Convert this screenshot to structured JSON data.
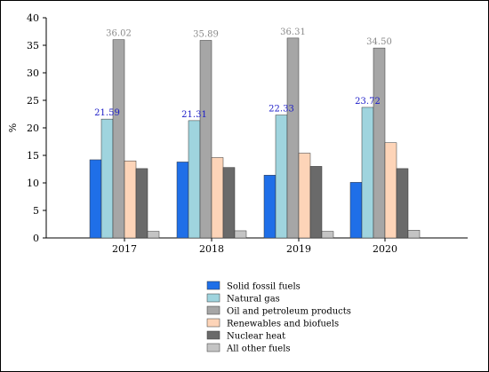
{
  "chart_data": {
    "type": "bar",
    "ylabel": "%",
    "ylim": [
      0,
      40
    ],
    "yticks": [
      0,
      5,
      10,
      15,
      20,
      25,
      30,
      35,
      40
    ],
    "categories": [
      "2017",
      "2018",
      "2019",
      "2020"
    ],
    "grid": false,
    "legend_position": "bottom-center",
    "series": [
      {
        "name": "Solid fossil fuels",
        "color": "#1f6fe8",
        "values": [
          14.2,
          13.8,
          11.4,
          10.1
        ]
      },
      {
        "name": "Natural gas",
        "color": "#9fd4de",
        "values": [
          21.59,
          21.31,
          22.33,
          23.72
        ],
        "labels": [
          "21.59",
          "21.31",
          "22.33",
          "23.72"
        ],
        "label_color": "#1c1cc8"
      },
      {
        "name": "Oil and petroleum products",
        "color": "#a6a6a6",
        "values": [
          36.02,
          35.89,
          36.31,
          34.5
        ],
        "labels": [
          "36.02",
          "35.89",
          "36.31",
          "34.50"
        ],
        "label_color": "#8a8a8a"
      },
      {
        "name": "Renewables and biofuels",
        "color": "#fdd4b8",
        "values": [
          14.0,
          14.6,
          15.4,
          17.3
        ]
      },
      {
        "name": "Nuclear heat",
        "color": "#6a6a6a",
        "values": [
          12.6,
          12.8,
          13.0,
          12.6
        ]
      },
      {
        "name": "All other fuels",
        "color": "#c4c4c4",
        "values": [
          1.2,
          1.3,
          1.2,
          1.4
        ]
      }
    ]
  }
}
